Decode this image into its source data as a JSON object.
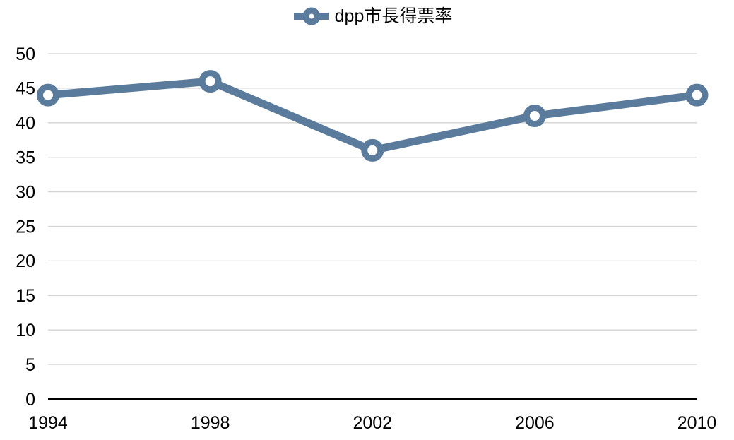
{
  "chart_data": {
    "type": "line",
    "categories": [
      "1994",
      "1998",
      "2002",
      "2006",
      "2010"
    ],
    "series": [
      {
        "name": "dpp市長得票率",
        "values": [
          44,
          46,
          36,
          41,
          44
        ],
        "color": "#5A7B9B",
        "marker": "ring"
      }
    ],
    "title": "",
    "xlabel": "",
    "ylabel": "",
    "ylim": [
      0,
      50
    ],
    "ytick_step": 5,
    "yticks": [
      0,
      5,
      10,
      15,
      20,
      25,
      30,
      35,
      40,
      45,
      50
    ],
    "grid": true,
    "legend_position": "top-center",
    "colors": {
      "line": "#5A7B9B",
      "marker_fill": "#FFFFFF",
      "gridline": "#D3D3D3",
      "axis_line": "#000000",
      "tick_label": "#000000",
      "background": "#FFFFFF"
    }
  }
}
